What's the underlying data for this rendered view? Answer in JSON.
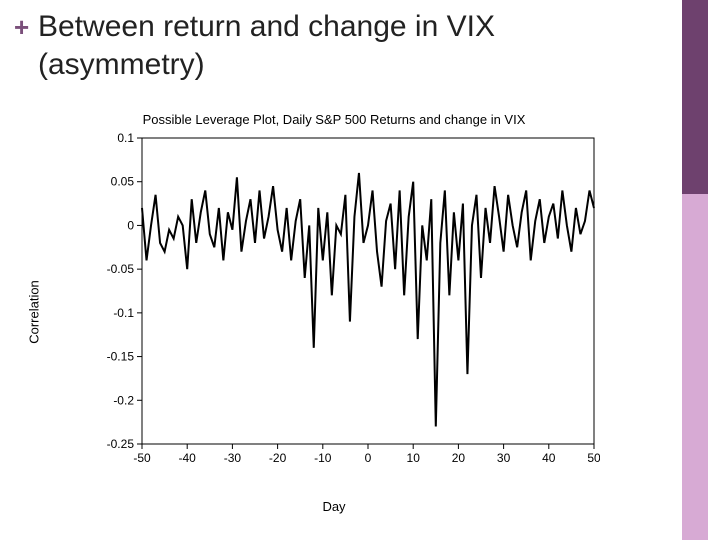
{
  "header": {
    "plus_color": "#7a4f7a",
    "title": "Between return and change in VIX (asymmetry)"
  },
  "sidebar": {
    "top_color": "#6e416e",
    "bottom_color": "#d7aad4"
  },
  "chart": {
    "type": "line",
    "title": "Possible Leverage Plot, Daily S&P 500 Returns and change in VIX",
    "xlabel": "Day",
    "ylabel": "Correlation",
    "xlim": [
      -50,
      50
    ],
    "ylim": [
      -0.25,
      0.1
    ],
    "xtick_step": 10,
    "ytick_step": 0.05,
    "background_color": "#ffffff",
    "axis_color": "#000000",
    "line_color": "#000000",
    "line_width": 2,
    "series": [
      [
        -50,
        0.02
      ],
      [
        -49,
        -0.04
      ],
      [
        -48,
        0.0
      ],
      [
        -47,
        0.035
      ],
      [
        -46,
        -0.02
      ],
      [
        -45,
        -0.03
      ],
      [
        -44,
        -0.005
      ],
      [
        -43,
        -0.015
      ],
      [
        -42,
        0.01
      ],
      [
        -41,
        0.0
      ],
      [
        -40,
        -0.05
      ],
      [
        -39,
        0.03
      ],
      [
        -38,
        -0.02
      ],
      [
        -37,
        0.015
      ],
      [
        -36,
        0.04
      ],
      [
        -35,
        -0.01
      ],
      [
        -34,
        -0.025
      ],
      [
        -33,
        0.02
      ],
      [
        -32,
        -0.04
      ],
      [
        -31,
        0.015
      ],
      [
        -30,
        -0.005
      ],
      [
        -29,
        0.055
      ],
      [
        -28,
        -0.03
      ],
      [
        -27,
        0.005
      ],
      [
        -26,
        0.03
      ],
      [
        -25,
        -0.02
      ],
      [
        -24,
        0.04
      ],
      [
        -23,
        -0.015
      ],
      [
        -22,
        0.01
      ],
      [
        -21,
        0.045
      ],
      [
        -20,
        -0.005
      ],
      [
        -19,
        -0.03
      ],
      [
        -18,
        0.02
      ],
      [
        -17,
        -0.04
      ],
      [
        -16,
        0.005
      ],
      [
        -15,
        0.03
      ],
      [
        -14,
        -0.06
      ],
      [
        -13,
        0.0
      ],
      [
        -12,
        -0.14
      ],
      [
        -11,
        0.02
      ],
      [
        -10,
        -0.04
      ],
      [
        -9,
        0.015
      ],
      [
        -8,
        -0.08
      ],
      [
        -7,
        0.0
      ],
      [
        -6,
        -0.01
      ],
      [
        -5,
        0.035
      ],
      [
        -4,
        -0.11
      ],
      [
        -3,
        0.01
      ],
      [
        -2,
        0.06
      ],
      [
        -1,
        -0.02
      ],
      [
        0,
        0.0
      ],
      [
        1,
        0.04
      ],
      [
        2,
        -0.03
      ],
      [
        3,
        -0.07
      ],
      [
        4,
        0.005
      ],
      [
        5,
        0.025
      ],
      [
        6,
        -0.05
      ],
      [
        7,
        0.04
      ],
      [
        8,
        -0.08
      ],
      [
        9,
        0.01
      ],
      [
        10,
        0.05
      ],
      [
        11,
        -0.13
      ],
      [
        12,
        0.0
      ],
      [
        13,
        -0.04
      ],
      [
        14,
        0.03
      ],
      [
        15,
        -0.23
      ],
      [
        16,
        -0.02
      ],
      [
        17,
        0.04
      ],
      [
        18,
        -0.08
      ],
      [
        19,
        0.015
      ],
      [
        20,
        -0.04
      ],
      [
        21,
        0.025
      ],
      [
        22,
        -0.17
      ],
      [
        23,
        0.0
      ],
      [
        24,
        0.035
      ],
      [
        25,
        -0.06
      ],
      [
        26,
        0.02
      ],
      [
        27,
        -0.02
      ],
      [
        28,
        0.045
      ],
      [
        29,
        0.01
      ],
      [
        30,
        -0.03
      ],
      [
        31,
        0.035
      ],
      [
        32,
        0.0
      ],
      [
        33,
        -0.025
      ],
      [
        34,
        0.015
      ],
      [
        35,
        0.04
      ],
      [
        36,
        -0.04
      ],
      [
        37,
        0.005
      ],
      [
        38,
        0.03
      ],
      [
        39,
        -0.02
      ],
      [
        40,
        0.01
      ],
      [
        41,
        0.025
      ],
      [
        42,
        -0.015
      ],
      [
        43,
        0.04
      ],
      [
        44,
        0.0
      ],
      [
        45,
        -0.03
      ],
      [
        46,
        0.02
      ],
      [
        47,
        -0.01
      ],
      [
        48,
        0.005
      ],
      [
        49,
        0.04
      ],
      [
        50,
        0.02
      ]
    ]
  }
}
